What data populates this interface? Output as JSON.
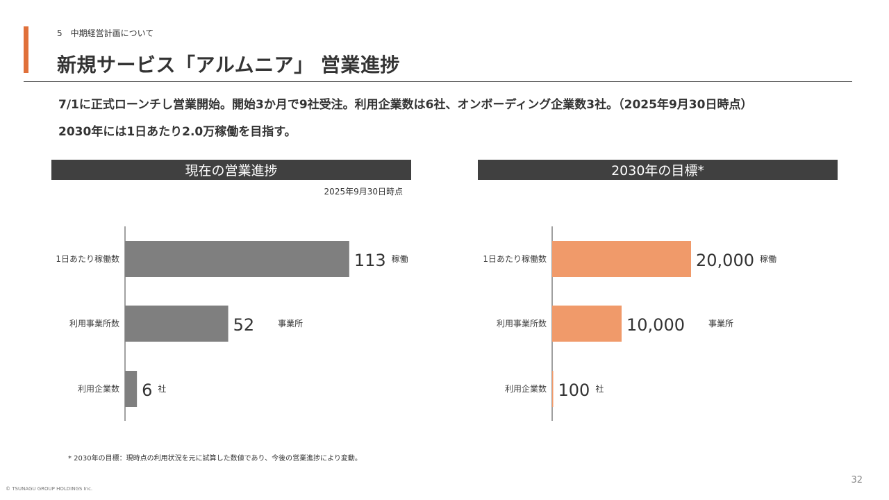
{
  "header": {
    "section": "5　中期経営計画について",
    "title": "新規サービス「アルムニア」 営業進捗"
  },
  "summary": {
    "line1": "7/1に正式ローンチし営業開始。開始3か月で9社受注。利用企業数は6社、オンボーディング企業数3社。（2025年9月30日時点）",
    "line2": "2030年には1日あたり2.0万稼働を目指す。"
  },
  "panels": {
    "current": {
      "title": "現在の営業進捗",
      "as_of": "2025年9月30日時点"
    },
    "target": {
      "title": "2030年の目標*"
    }
  },
  "chart_data": [
    {
      "type": "bar",
      "orientation": "horizontal",
      "title": "現在の営業進捗",
      "categories": [
        "1日あたり稼働数",
        "利用事業所数",
        "利用企業数"
      ],
      "values": [
        113,
        52,
        6
      ],
      "value_labels": [
        "113",
        "52",
        "6"
      ],
      "units": [
        "稼働",
        "事業所",
        "社"
      ],
      "xlim": [
        0,
        140
      ],
      "color": "#7f7f7f"
    },
    {
      "type": "bar",
      "orientation": "horizontal",
      "title": "2030年の目標*",
      "categories": [
        "1日あたり稼働数",
        "利用事業所数",
        "利用企業数"
      ],
      "values": [
        20000,
        10000,
        100
      ],
      "value_labels": [
        "20,000",
        "10,000",
        "100"
      ],
      "units": [
        "稼働",
        "事業所",
        "社"
      ],
      "xlim": [
        0,
        40000
      ],
      "color": "#f09a6a"
    }
  ],
  "footnote": "* 2030年の目標：現時点の利用状況を元に試算した数値であり、今後の営業進捗により変動。",
  "footer": {
    "copyright": "© TSUNAGU GROUP HOLDINGS Inc.",
    "page_number": "32"
  }
}
